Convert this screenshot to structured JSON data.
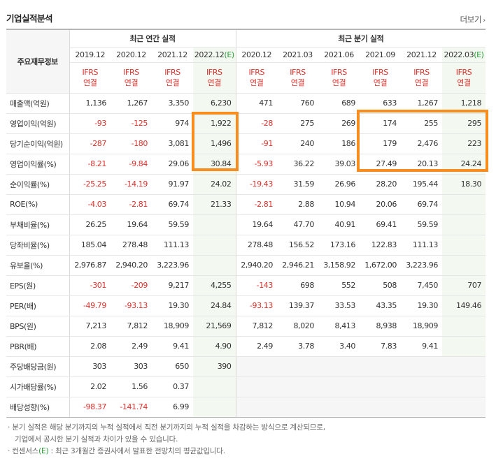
{
  "title": "기업실적분석",
  "more_label": "더보기",
  "header": {
    "row_label": "주요재무정보",
    "annual_label": "최근 연간 실적",
    "quarter_label": "최근 분기 실적",
    "annual_dates": [
      "2019.12",
      "2020.12",
      "2021.12",
      "2022.12"
    ],
    "quarter_dates": [
      "2020.12",
      "2021.03",
      "2021.06",
      "2021.09",
      "2021.12",
      "2022.03"
    ],
    "est_mark": "(E)",
    "ifrs": "IFRS",
    "ifrs_sub": "연결"
  },
  "rows": [
    {
      "label": "매출액(억원)",
      "annual": [
        "1,136",
        "1,267",
        "3,350",
        "6,230"
      ],
      "quarter": [
        "471",
        "760",
        "689",
        "633",
        "1,267",
        "1,218"
      ]
    },
    {
      "label": "영업이익(억원)",
      "annual": [
        "-93",
        "-125",
        "974",
        "1,922"
      ],
      "quarter": [
        "-28",
        "275",
        "269",
        "174",
        "255",
        "295"
      ]
    },
    {
      "label": "당기순이익(억원)",
      "annual": [
        "-287",
        "-180",
        "3,081",
        "1,496"
      ],
      "quarter": [
        "-91",
        "240",
        "186",
        "179",
        "2,476",
        "223"
      ]
    },
    {
      "label": "영업이익률(%)",
      "annual": [
        "-8.21",
        "-9.84",
        "29.06",
        "30.84"
      ],
      "quarter": [
        "-5.93",
        "36.22",
        "39.03",
        "27.49",
        "20.13",
        "24.24"
      ]
    },
    {
      "label": "순이익률(%)",
      "annual": [
        "-25.25",
        "-14.19",
        "91.97",
        "24.02"
      ],
      "quarter": [
        "-19.43",
        "31.59",
        "26.96",
        "28.20",
        "195.44",
        "18.30"
      ]
    },
    {
      "label": "ROE(%)",
      "annual": [
        "-4.03",
        "-2.81",
        "69.74",
        "21.33"
      ],
      "quarter": [
        "-2.81",
        "2.88",
        "10.94",
        "20.06",
        "69.74",
        ""
      ]
    },
    {
      "label": "부채비율(%)",
      "annual": [
        "26.25",
        "19.64",
        "59.59",
        ""
      ],
      "quarter": [
        "19.64",
        "47.70",
        "40.91",
        "69.41",
        "59.59",
        ""
      ]
    },
    {
      "label": "당좌비율(%)",
      "annual": [
        "185.04",
        "278.48",
        "111.13",
        ""
      ],
      "quarter": [
        "278.48",
        "156.52",
        "173.16",
        "122.83",
        "111.13",
        ""
      ]
    },
    {
      "label": "유보율(%)",
      "annual": [
        "2,976.87",
        "2,940.20",
        "3,223.96",
        ""
      ],
      "quarter": [
        "2,940.20",
        "2,946.21",
        "3,158.92",
        "1,672.00",
        "3,223.96",
        ""
      ]
    },
    {
      "label": "EPS(원)",
      "annual": [
        "-301",
        "-209",
        "9,217",
        "4,255"
      ],
      "quarter": [
        "-143",
        "698",
        "552",
        "508",
        "7,450",
        "707"
      ]
    },
    {
      "label": "PER(배)",
      "annual": [
        "-49.79",
        "-93.13",
        "19.30",
        "24.84"
      ],
      "quarter": [
        "-93.13",
        "139.37",
        "33.53",
        "43.35",
        "19.30",
        "149.46"
      ]
    },
    {
      "label": "BPS(원)",
      "annual": [
        "7,213",
        "7,812",
        "18,909",
        "21,569"
      ],
      "quarter": [
        "7,812",
        "8,020",
        "8,413",
        "8,938",
        "18,909",
        ""
      ]
    },
    {
      "label": "PBR(배)",
      "annual": [
        "2.08",
        "2.49",
        "9.41",
        "4.90"
      ],
      "quarter": [
        "2.49",
        "3.78",
        "3.40",
        "7.83",
        "9.41",
        ""
      ]
    },
    {
      "label": "주당배당금(원)",
      "annual": [
        "303",
        "303",
        "650",
        "390"
      ],
      "quarter": [
        "",
        "",
        "",
        "",
        "",
        ""
      ]
    },
    {
      "label": "시가배당률(%)",
      "annual": [
        "2.02",
        "1.56",
        "0.37",
        ""
      ],
      "quarter": [
        "",
        "",
        "",
        "",
        "",
        ""
      ]
    },
    {
      "label": "배당성향(%)",
      "annual": [
        "-98.37",
        "-141.74",
        "6.99",
        ""
      ],
      "quarter": [
        "",
        "",
        "",
        "",
        "",
        ""
      ]
    }
  ],
  "notes": {
    "line1": "분기 실적은 해당 분기까지의 누적 실적에서 직전 분기까지의 누적 실적을 차감하는 방식으로 계산되므로,",
    "line2": "기업에서 공시한 분기 실적과 차이가 있을 수 있습니다.",
    "line3_pre": "컨센서스",
    "line3_mark": "(E)",
    "line3_post": " : 최근 3개월간 증권사에서 발표한 전망치의 평균값입니다."
  },
  "colors": {
    "negative": "#e0302c",
    "highlight": "#f78d1f",
    "estimate_bg": "#f3f8f0",
    "est_mark": "#2a9d3a"
  }
}
